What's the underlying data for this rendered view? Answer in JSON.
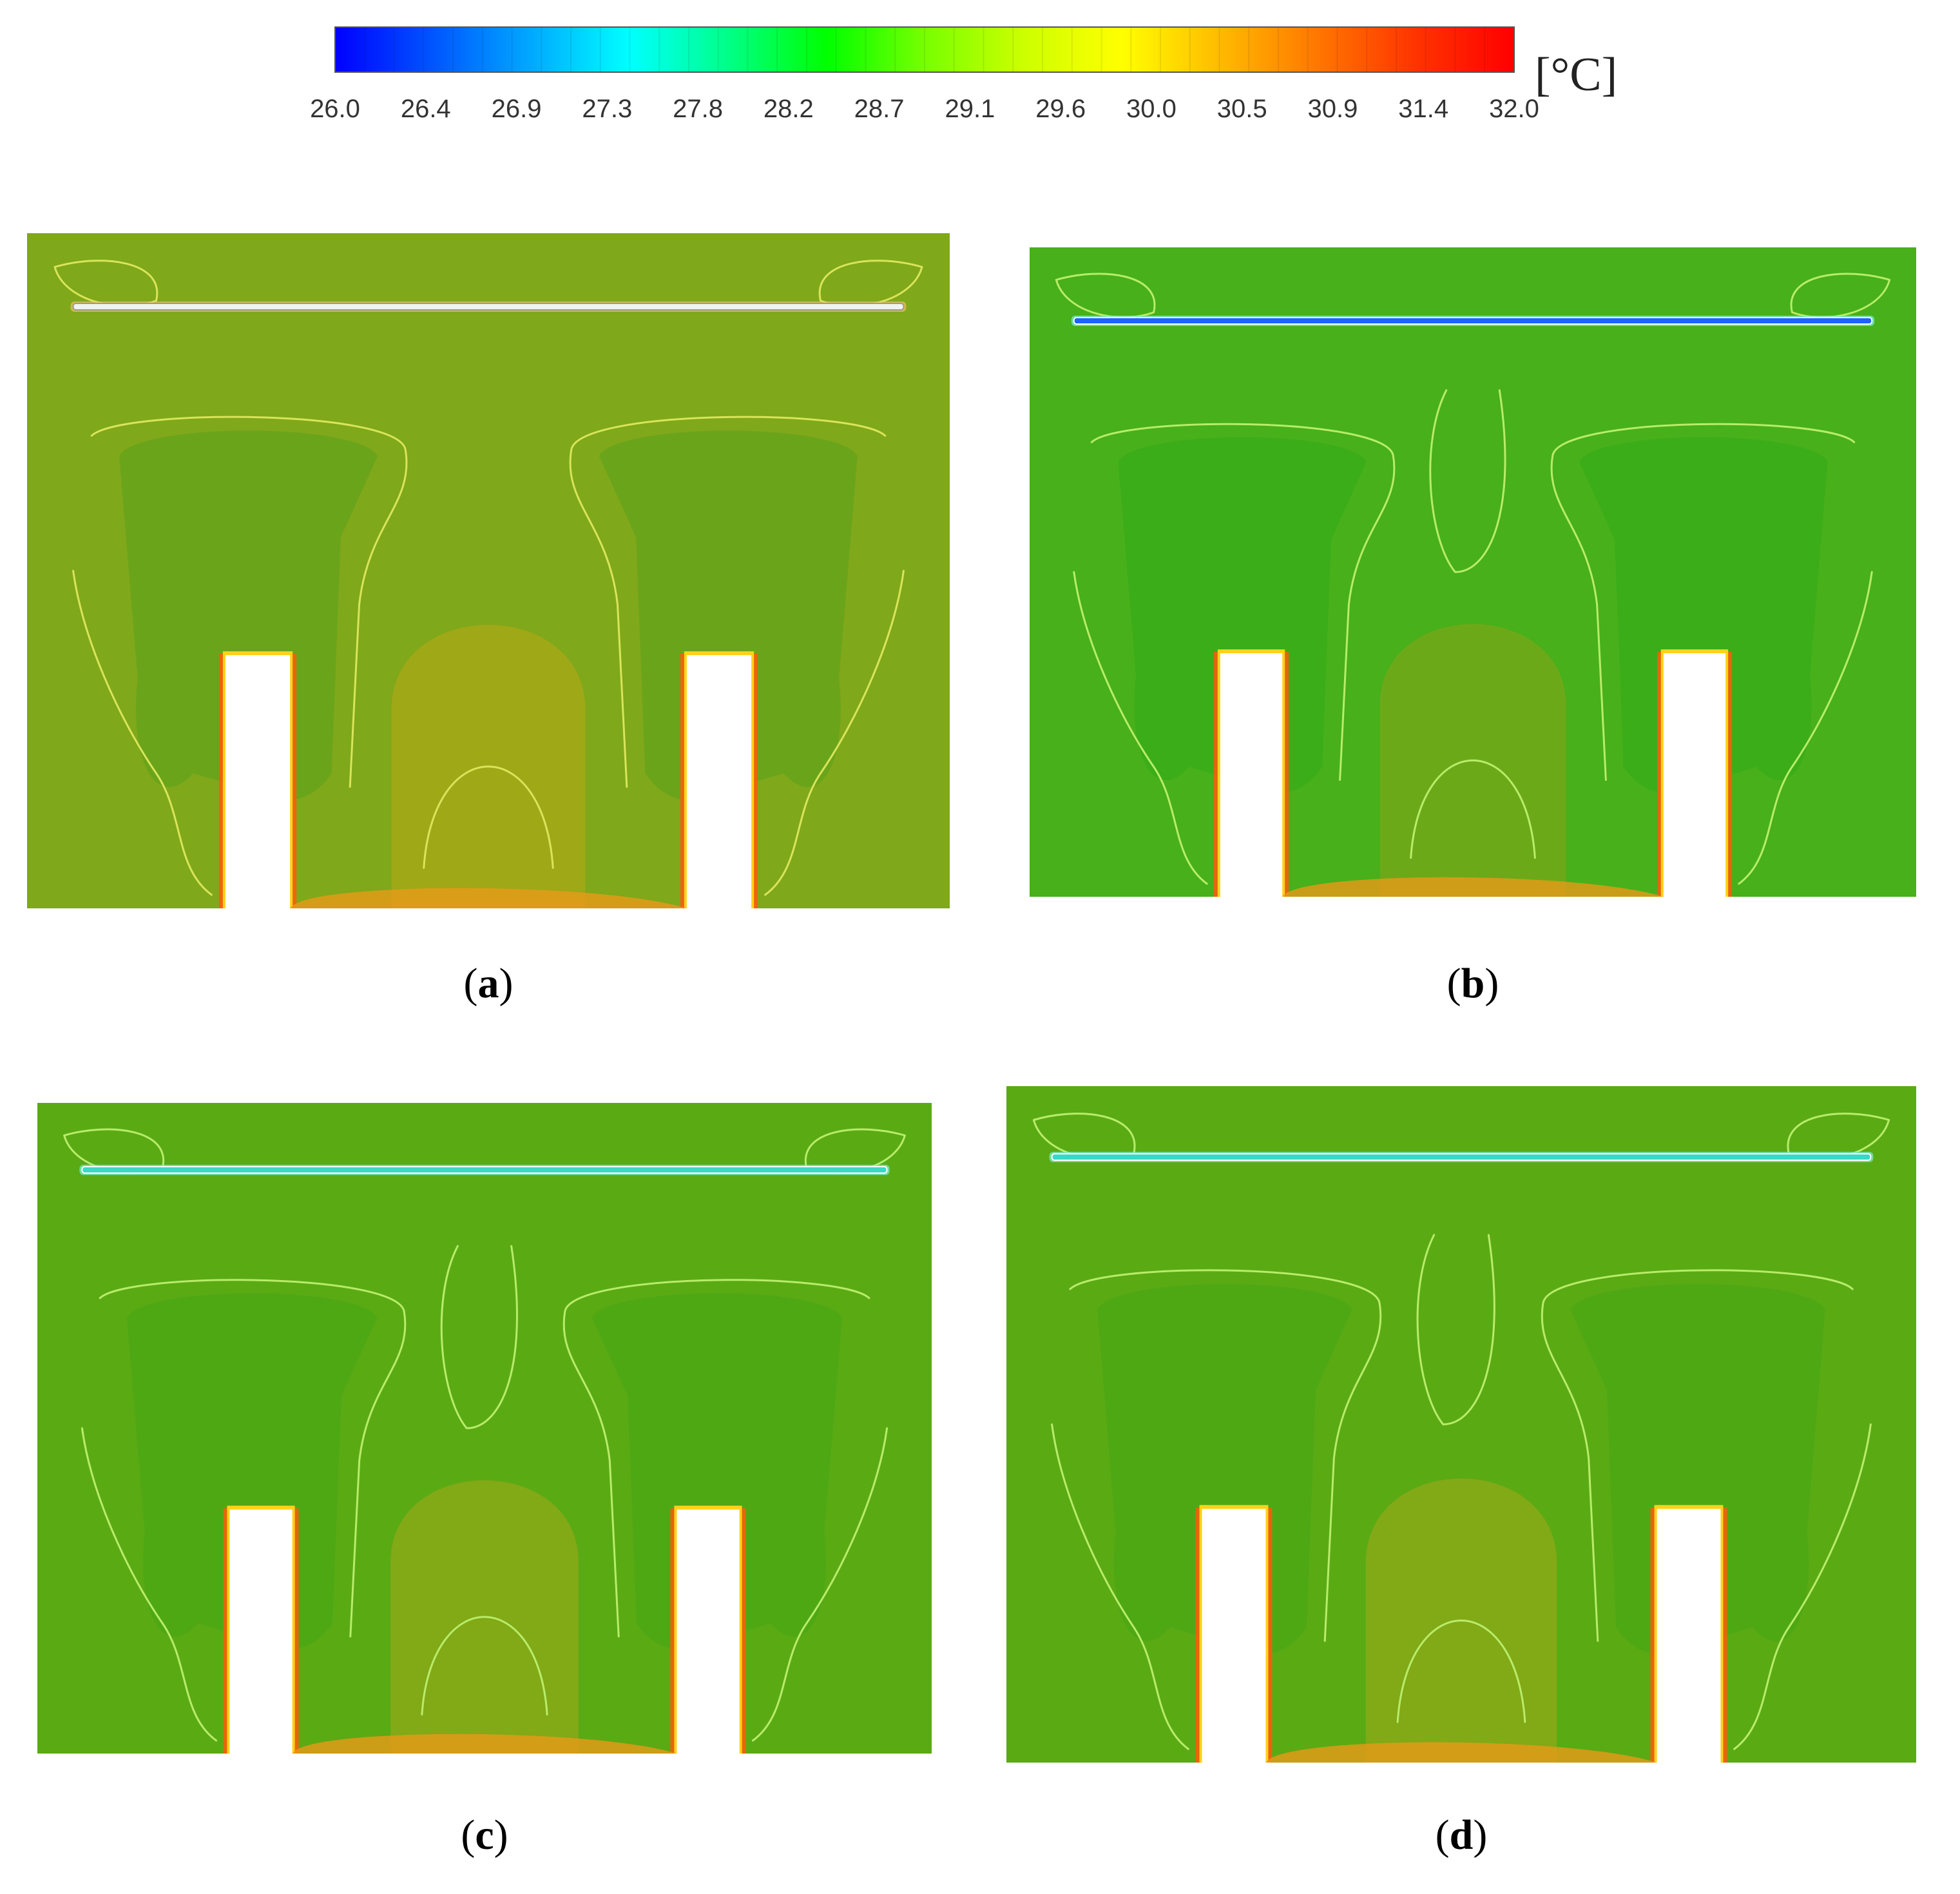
{
  "colorbar": {
    "ticks": [
      "26.0",
      "26.4",
      "26.9",
      "27.3",
      "27.8",
      "28.2",
      "28.7",
      "29.1",
      "29.6",
      "30.0",
      "30.5",
      "30.9",
      "31.4",
      "32.0"
    ],
    "unit": "[°C]",
    "min": 26.0,
    "max": 32.0,
    "colormap": [
      "#0000ff",
      "#0055ff",
      "#00aaff",
      "#00ffff",
      "#00ff88",
      "#00ff00",
      "#77ff00",
      "#ccff00",
      "#ffff00",
      "#ffbb00",
      "#ff7700",
      "#ff3300",
      "#ff0000"
    ]
  },
  "panels": [
    {
      "id": "a",
      "label": "a",
      "base_color": "#7fa81a",
      "zone_color": "#6aa41a",
      "plume_color": "#a3a716",
      "duct_color": "#f0f4f0"
    },
    {
      "id": "b",
      "label": "b",
      "base_color": "#47b01a",
      "zone_color": "#3aad18",
      "plume_color": "#70a818",
      "duct_color": "#2060ff"
    },
    {
      "id": "c",
      "label": "c",
      "base_color": "#5aaa14",
      "zone_color": "#4ea814",
      "plume_color": "#86a816",
      "duct_color": "#3ad8c8"
    },
    {
      "id": "d",
      "label": "d",
      "base_color": "#5aaa14",
      "zone_color": "#4ea814",
      "plume_color": "#86a816",
      "duct_color": "#3ad8c8"
    }
  ]
}
